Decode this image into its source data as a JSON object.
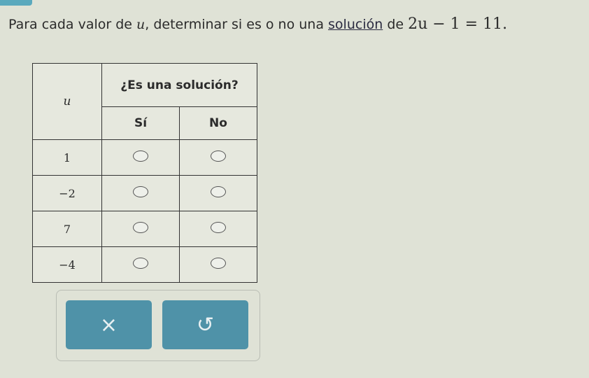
{
  "question": {
    "prefix": "Para cada valor de ",
    "variable": "u",
    "middle": ", determinar si es o no una ",
    "link": "solución",
    "suffix": " de",
    "equation": "2u − 1 = 11."
  },
  "table": {
    "col_var": "u",
    "header_group": "¿Es una solución?",
    "col_yes": "Sí",
    "col_no": "No",
    "rows": [
      {
        "value": "1"
      },
      {
        "value": "−2"
      },
      {
        "value": "7"
      },
      {
        "value": "−4"
      }
    ]
  },
  "buttons": {
    "clear_symbol": "×",
    "undo_symbol": "↺"
  },
  "colors": {
    "button": "#4f92a8",
    "background": "#dfe2d6"
  }
}
